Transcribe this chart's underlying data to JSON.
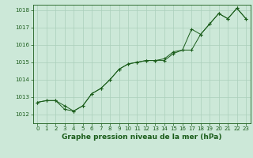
{
  "title": "Graphe pression niveau de la mer (hPa)",
  "bg_color": "#cce8d8",
  "grid_color": "#aacfbb",
  "line_color": "#1a5c1a",
  "xlim": [
    -0.5,
    23.5
  ],
  "ylim": [
    1011.5,
    1018.3
  ],
  "yticks": [
    1012,
    1013,
    1014,
    1015,
    1016,
    1017,
    1018
  ],
  "xticks": [
    0,
    1,
    2,
    3,
    4,
    5,
    6,
    7,
    8,
    9,
    10,
    11,
    12,
    13,
    14,
    15,
    16,
    17,
    18,
    19,
    20,
    21,
    22,
    23
  ],
  "series1_x": [
    0,
    1,
    2,
    3,
    4,
    5,
    6,
    7,
    8,
    9,
    10,
    11,
    12,
    13,
    14,
    15,
    16,
    17,
    18,
    19,
    20,
    21,
    22,
    23
  ],
  "series1_y": [
    1012.7,
    1012.8,
    1012.8,
    1012.3,
    1012.2,
    1012.5,
    1013.2,
    1013.5,
    1014.0,
    1014.6,
    1014.9,
    1015.0,
    1015.1,
    1015.1,
    1015.2,
    1015.6,
    1015.7,
    1016.9,
    1016.6,
    1017.2,
    1017.8,
    1017.5,
    1018.1,
    1017.5
  ],
  "series2_x": [
    0,
    1,
    2,
    3,
    4,
    5,
    6,
    7,
    8,
    9,
    10,
    11,
    12,
    13,
    14,
    15,
    16,
    17,
    18,
    19,
    20,
    21,
    22,
    23
  ],
  "series2_y": [
    1012.7,
    1012.8,
    1012.8,
    1012.5,
    1012.2,
    1012.5,
    1013.2,
    1013.5,
    1014.0,
    1014.6,
    1014.9,
    1015.0,
    1015.1,
    1015.1,
    1015.1,
    1015.5,
    1015.7,
    1015.7,
    1016.6,
    1017.2,
    1017.8,
    1017.5,
    1018.1,
    1017.5
  ],
  "title_fontsize": 6.5,
  "tick_fontsize": 5.0,
  "linewidth": 0.7,
  "marker_size": 3.0
}
